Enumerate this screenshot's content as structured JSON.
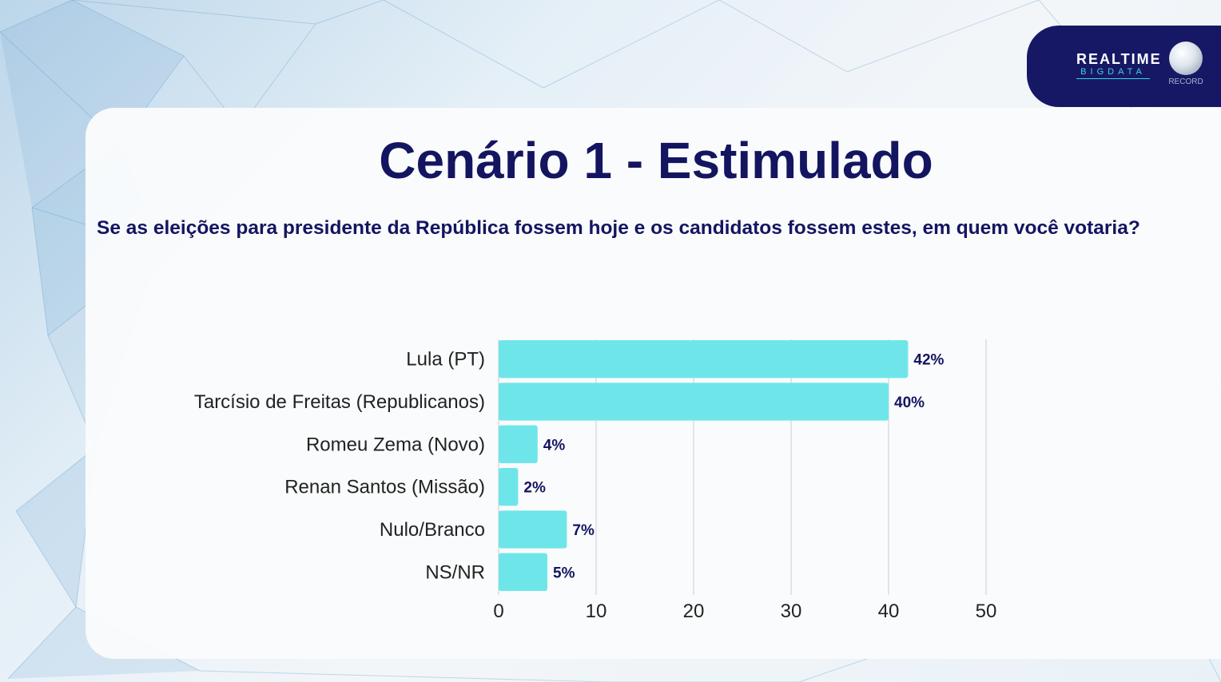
{
  "header": {
    "brand_line1": "REALTIME",
    "brand_line2": "BIGDATA",
    "network": "RECORD"
  },
  "title": "Cenário 1 - Estimulado",
  "question": "Se as eleições para presidente da República fossem hoje e os candidatos fossem estes, em quem você votaria?",
  "chart_data": {
    "type": "bar",
    "orientation": "horizontal",
    "categories": [
      "Lula (PT)",
      "Tarcísio de Freitas (Republicanos)",
      "Romeu Zema (Novo)",
      "Renan Santos (Missão)",
      "Nulo/Branco",
      "NS/NR"
    ],
    "values": [
      42,
      40,
      4,
      2,
      7,
      5
    ],
    "data_labels": [
      "42%",
      "40%",
      "4%",
      "2%",
      "7%",
      "5%"
    ],
    "xlim": [
      0,
      50
    ],
    "xticks": [
      0,
      10,
      20,
      30,
      40,
      50
    ],
    "grid": true,
    "bar_color": "#6ee6e9",
    "label_color": "#141560"
  },
  "colors": {
    "navy": "#141560",
    "logo_bg": "#161866",
    "accent": "#3fd3e6"
  }
}
